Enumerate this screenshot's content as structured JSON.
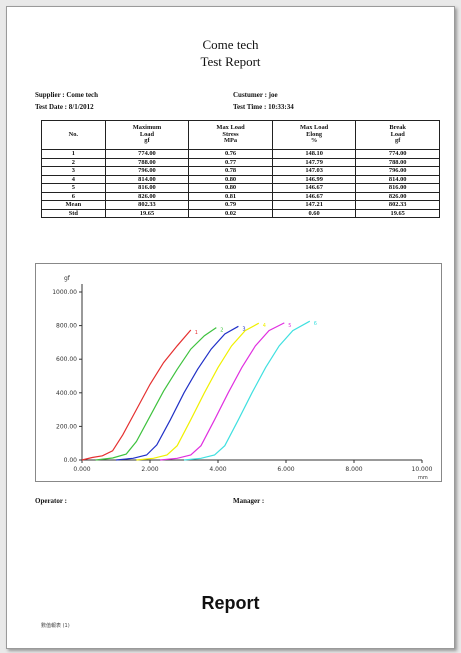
{
  "report": {
    "company": "Come tech",
    "title": "Test Report",
    "supplier": "Supplier : Come tech",
    "customer": "Custumer : joe",
    "test_date": "Test Date : 8/1/2012",
    "test_time": "Test Time : 10:33:34"
  },
  "table": {
    "headers": [
      [
        "No."
      ],
      [
        "Maximum",
        "Load",
        "gf"
      ],
      [
        "Max Load",
        "Stress",
        "MPa"
      ],
      [
        "Max Load",
        "Elong",
        "%"
      ],
      [
        "Break",
        "Load",
        "gf"
      ]
    ],
    "rows": [
      [
        "1",
        "774.00",
        "0.76",
        "148.10",
        "774.00"
      ],
      [
        "2",
        "788.00",
        "0.77",
        "147.79",
        "788.00"
      ],
      [
        "3",
        "796.00",
        "0.78",
        "147.03",
        "796.00"
      ],
      [
        "4",
        "814.00",
        "0.80",
        "146.99",
        "814.00"
      ],
      [
        "5",
        "816.00",
        "0.80",
        "146.67",
        "816.00"
      ],
      [
        "6",
        "826.00",
        "0.81",
        "146.67",
        "826.00"
      ],
      [
        "Mean",
        "802.33",
        "0.79",
        "147.21",
        "802.33"
      ],
      [
        "Std",
        "19.65",
        "0.02",
        "0.60",
        "19.65"
      ]
    ]
  },
  "chart_data": {
    "type": "line",
    "xlabel": "mm",
    "ylabel": "gf",
    "xlim": [
      0,
      10
    ],
    "ylim": [
      0,
      1000
    ],
    "x_ticks": [
      "0.000",
      "2.000",
      "4.000",
      "6.000",
      "8.000",
      "10.000"
    ],
    "y_ticks": [
      "0.00",
      "200.00",
      "400.00",
      "600.00",
      "800.00",
      "1000.00"
    ],
    "series": [
      {
        "name": "1",
        "color": "#e53030",
        "points": [
          [
            0.0,
            0
          ],
          [
            0.3,
            15
          ],
          [
            0.6,
            25
          ],
          [
            0.9,
            55
          ],
          [
            1.2,
            150
          ],
          [
            1.6,
            300
          ],
          [
            2.0,
            450
          ],
          [
            2.4,
            580
          ],
          [
            2.8,
            680
          ],
          [
            3.2,
            774
          ]
        ]
      },
      {
        "name": "2",
        "color": "#3ec23e",
        "points": [
          [
            0.4,
            0
          ],
          [
            0.9,
            12
          ],
          [
            1.3,
            35
          ],
          [
            1.6,
            110
          ],
          [
            2.0,
            260
          ],
          [
            2.4,
            410
          ],
          [
            2.8,
            540
          ],
          [
            3.2,
            660
          ],
          [
            3.6,
            740
          ],
          [
            3.95,
            788
          ]
        ]
      },
      {
        "name": "3",
        "color": "#2030c8",
        "points": [
          [
            1.0,
            0
          ],
          [
            1.5,
            10
          ],
          [
            1.9,
            30
          ],
          [
            2.2,
            90
          ],
          [
            2.6,
            240
          ],
          [
            3.0,
            400
          ],
          [
            3.4,
            540
          ],
          [
            3.8,
            660
          ],
          [
            4.2,
            750
          ],
          [
            4.6,
            796
          ]
        ]
      },
      {
        "name": "4",
        "color": "#f0f000",
        "points": [
          [
            1.6,
            0
          ],
          [
            2.1,
            10
          ],
          [
            2.5,
            30
          ],
          [
            2.8,
            85
          ],
          [
            3.2,
            240
          ],
          [
            3.6,
            400
          ],
          [
            4.0,
            550
          ],
          [
            4.4,
            680
          ],
          [
            4.8,
            770
          ],
          [
            5.2,
            814
          ]
        ]
      },
      {
        "name": "5",
        "color": "#e030e0",
        "points": [
          [
            2.3,
            0
          ],
          [
            2.8,
            10
          ],
          [
            3.2,
            30
          ],
          [
            3.5,
            85
          ],
          [
            3.9,
            240
          ],
          [
            4.3,
            400
          ],
          [
            4.7,
            550
          ],
          [
            5.1,
            680
          ],
          [
            5.5,
            770
          ],
          [
            5.95,
            816
          ]
        ]
      },
      {
        "name": "6",
        "color": "#40e0e0",
        "points": [
          [
            3.0,
            0
          ],
          [
            3.5,
            10
          ],
          [
            3.9,
            30
          ],
          [
            4.2,
            85
          ],
          [
            4.6,
            240
          ],
          [
            5.0,
            400
          ],
          [
            5.4,
            550
          ],
          [
            5.8,
            680
          ],
          [
            6.2,
            770
          ],
          [
            6.7,
            826
          ]
        ]
      }
    ]
  },
  "footer": {
    "operator": "Operator :",
    "manager": "Manager :",
    "caption": "Report",
    "small_note": "數值報表 (1)"
  }
}
